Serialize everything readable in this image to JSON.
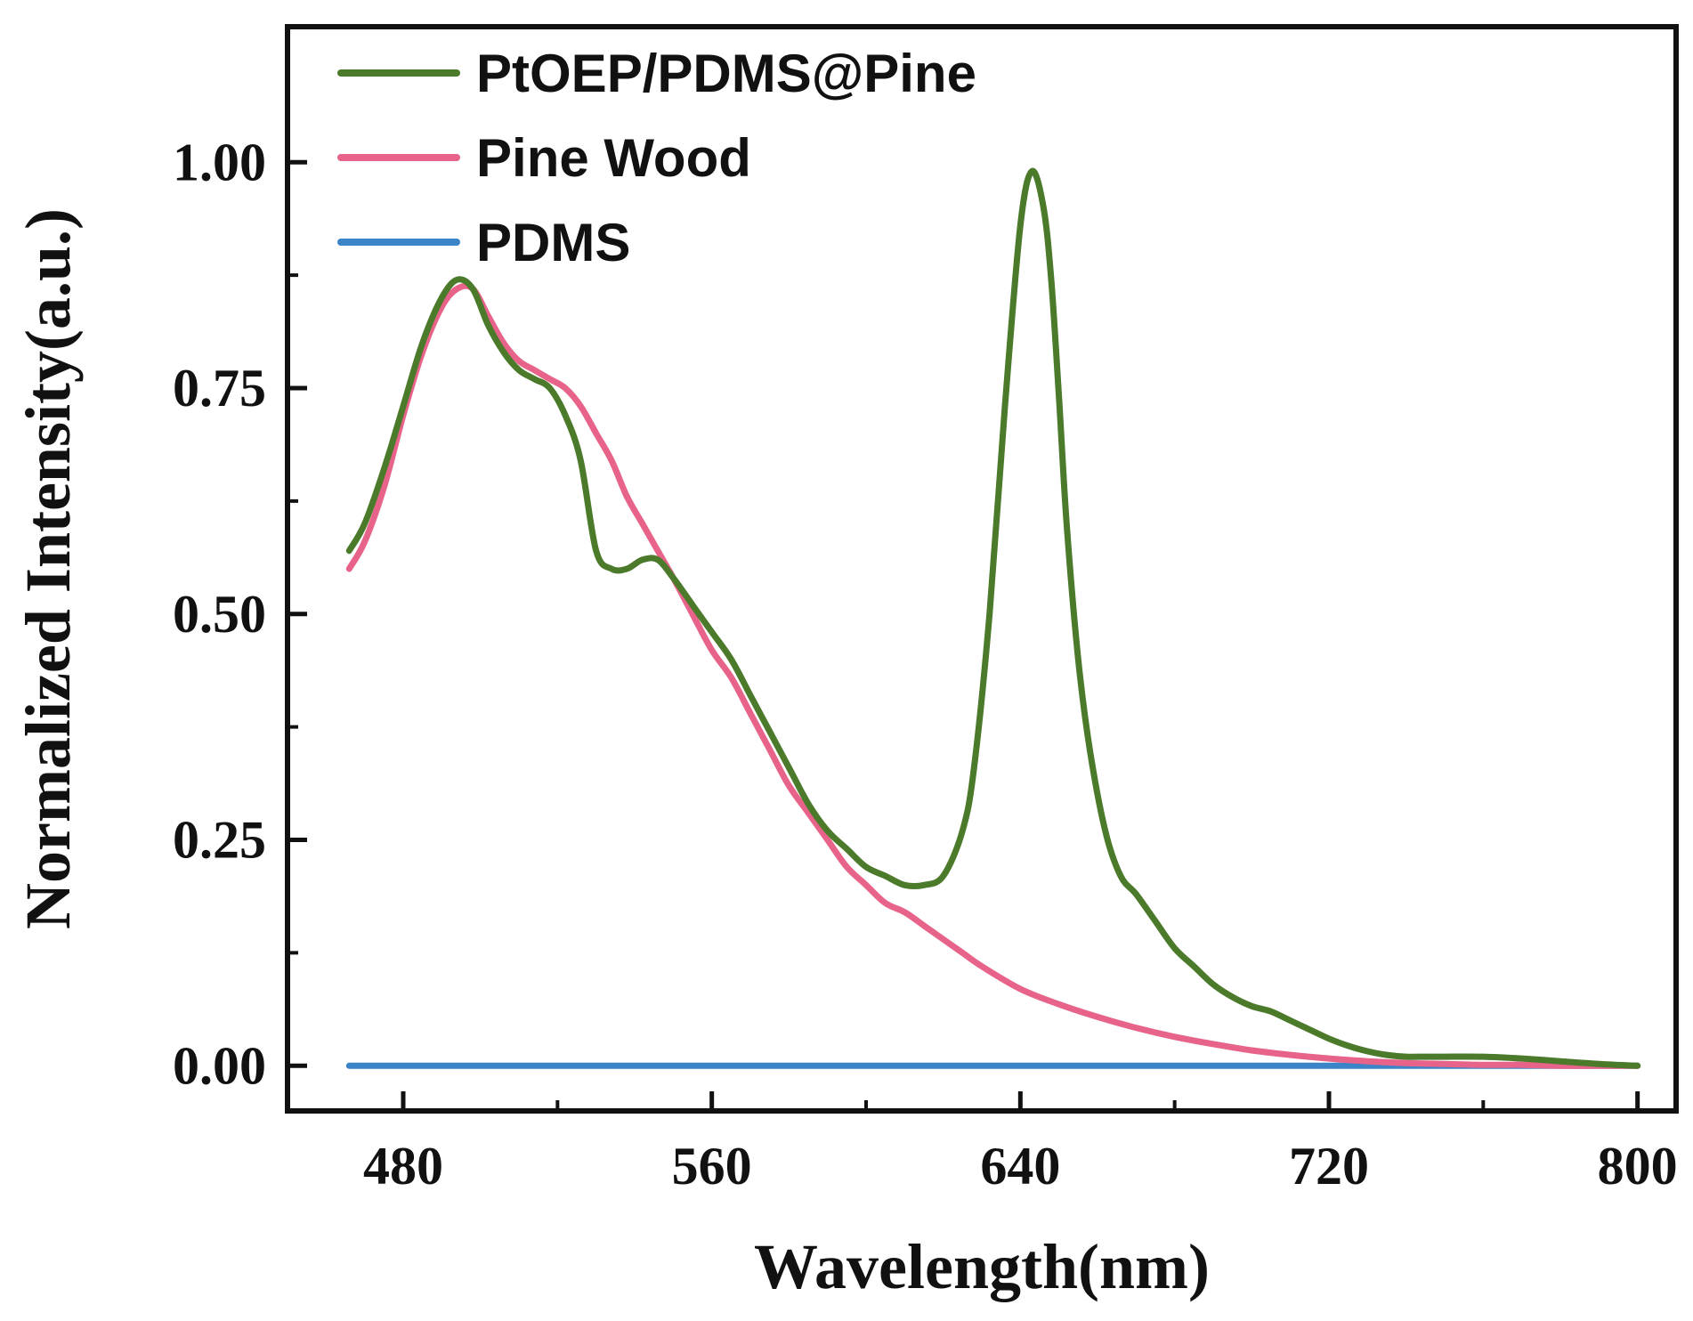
{
  "chart_data": {
    "type": "line",
    "xlabel": "Wavelength(nm)",
    "ylabel": "Normalized Intensity(a.u.)",
    "xlim": [
      450,
      810
    ],
    "ylim": [
      -0.05,
      1.15
    ],
    "xticks": [
      480,
      560,
      640,
      720,
      800
    ],
    "xtick_labels": [
      "480",
      "560",
      "640",
      "720",
      "800"
    ],
    "yticks": [
      0.0,
      0.25,
      0.5,
      0.75,
      1.0
    ],
    "ytick_labels": [
      "0.00",
      "0.25",
      "0.50",
      "0.75",
      "1.00"
    ],
    "legend_position": "top-left",
    "series": [
      {
        "name": "PtOEP/PDMS@Pine",
        "color": "#4a7a2a",
        "x": [
          466,
          470,
          475,
          480,
          485,
          490,
          494,
          498,
          502,
          506,
          510,
          514,
          518,
          522,
          526,
          530,
          534,
          538,
          542,
          546,
          550,
          555,
          560,
          565,
          570,
          575,
          580,
          585,
          590,
          595,
          600,
          605,
          610,
          615,
          620,
          625,
          628,
          632,
          636,
          640,
          643,
          646,
          648,
          650,
          652,
          655,
          658,
          662,
          666,
          670,
          675,
          680,
          685,
          690,
          695,
          700,
          705,
          710,
          715,
          720,
          725,
          730,
          735,
          740,
          745,
          750,
          760,
          770,
          780,
          790,
          800
        ],
        "y": [
          0.57,
          0.6,
          0.66,
          0.73,
          0.8,
          0.85,
          0.87,
          0.86,
          0.82,
          0.79,
          0.77,
          0.76,
          0.75,
          0.72,
          0.67,
          0.57,
          0.55,
          0.55,
          0.56,
          0.56,
          0.54,
          0.51,
          0.48,
          0.45,
          0.41,
          0.37,
          0.33,
          0.29,
          0.26,
          0.24,
          0.22,
          0.21,
          0.2,
          0.2,
          0.21,
          0.26,
          0.33,
          0.5,
          0.73,
          0.93,
          0.99,
          0.95,
          0.87,
          0.74,
          0.6,
          0.45,
          0.35,
          0.26,
          0.21,
          0.19,
          0.16,
          0.13,
          0.11,
          0.09,
          0.076,
          0.066,
          0.06,
          0.05,
          0.04,
          0.03,
          0.022,
          0.016,
          0.012,
          0.01,
          0.01,
          0.01,
          0.01,
          0.008,
          0.005,
          0.002,
          0.0
        ]
      },
      {
        "name": "Pine Wood",
        "color": "#e8638a",
        "x": [
          466,
          470,
          475,
          480,
          485,
          490,
          494,
          498,
          502,
          506,
          510,
          514,
          518,
          522,
          526,
          530,
          534,
          538,
          542,
          546,
          550,
          555,
          560,
          565,
          570,
          575,
          580,
          585,
          590,
          595,
          600,
          605,
          610,
          615,
          620,
          625,
          630,
          640,
          650,
          660,
          670,
          680,
          690,
          700,
          710,
          720,
          730,
          740,
          750,
          760,
          770,
          780,
          790,
          800
        ],
        "y": [
          0.55,
          0.58,
          0.64,
          0.72,
          0.79,
          0.84,
          0.86,
          0.86,
          0.83,
          0.8,
          0.78,
          0.77,
          0.76,
          0.75,
          0.73,
          0.7,
          0.67,
          0.63,
          0.6,
          0.57,
          0.54,
          0.5,
          0.46,
          0.43,
          0.39,
          0.35,
          0.31,
          0.28,
          0.25,
          0.22,
          0.2,
          0.18,
          0.17,
          0.155,
          0.14,
          0.125,
          0.11,
          0.085,
          0.068,
          0.054,
          0.042,
          0.032,
          0.024,
          0.017,
          0.012,
          0.008,
          0.005,
          0.003,
          0.002,
          0.001,
          0.001,
          0.0,
          0.0,
          0.0
        ]
      },
      {
        "name": "PDMS",
        "color": "#3b84c8",
        "x": [
          466,
          500,
          550,
          600,
          650,
          700,
          750,
          800
        ],
        "y": [
          0.0,
          0.0,
          0.0,
          0.0,
          0.0,
          0.0,
          0.0,
          0.0
        ]
      }
    ]
  }
}
